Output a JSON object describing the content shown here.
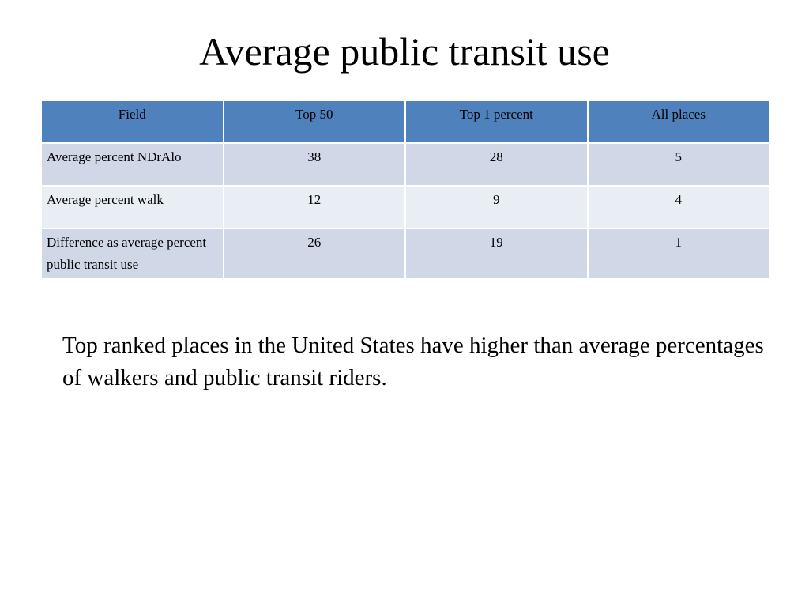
{
  "slide": {
    "title": "Average public transit use",
    "caption": "Top ranked places in the United States have higher than average percentages of walkers and public transit riders."
  },
  "table": {
    "headers": [
      "Field",
      "Top 50",
      "Top 1 percent",
      "All places"
    ],
    "rows": [
      {
        "field": "Average percent NDrAlo",
        "values": [
          "38",
          "28",
          "5"
        ]
      },
      {
        "field": "Average percent walk",
        "values": [
          "12",
          "9",
          "4"
        ]
      },
      {
        "field": "Difference as average percent public transit use",
        "values": [
          "26",
          "19",
          "1"
        ]
      }
    ]
  },
  "colors": {
    "header_fill": "#4f81bd",
    "row_fill_a": "#d0d8e8",
    "row_fill_b": "#e9edf4"
  }
}
